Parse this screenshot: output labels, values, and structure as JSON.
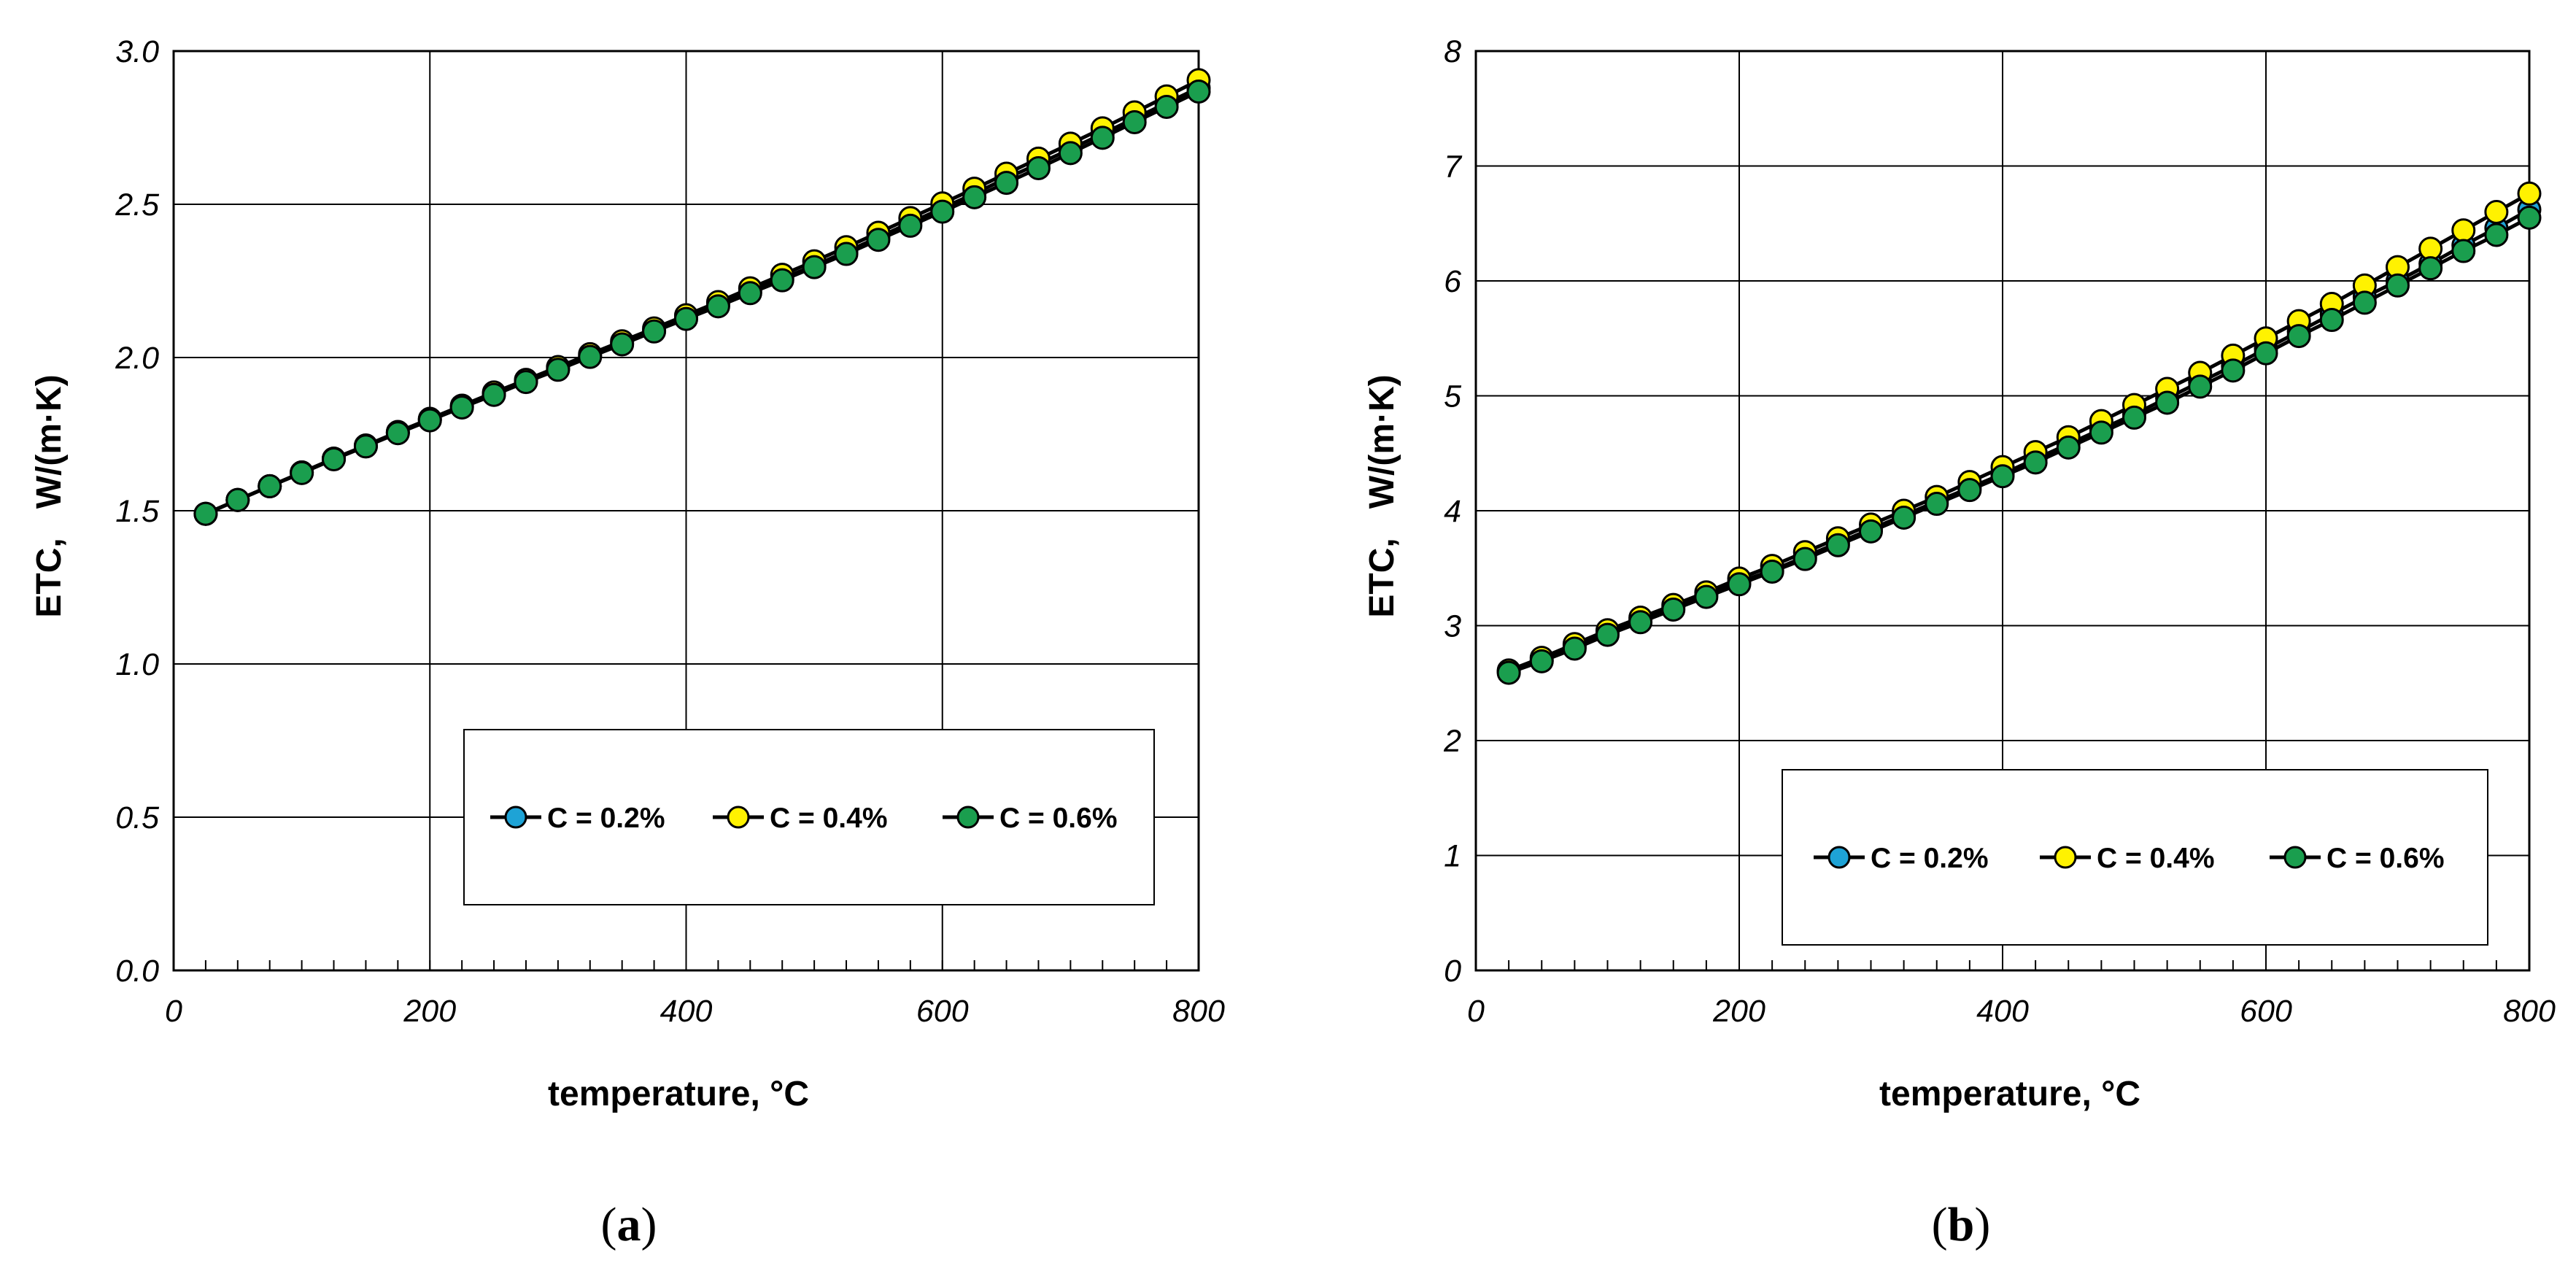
{
  "chart_data": [
    {
      "id": "a",
      "type": "line",
      "panel_label": "a",
      "xlabel": "temperature, °C",
      "ylabel": "ETC,   W/(m·K)",
      "xlim": [
        0,
        800
      ],
      "ylim": [
        0.0,
        3.0
      ],
      "x_ticks": [
        "0",
        "200",
        "400",
        "600",
        "800"
      ],
      "y_ticks": [
        "0.0",
        "0.5",
        "1.0",
        "1.5",
        "2.0",
        "2.5",
        "3.0"
      ],
      "grid": true,
      "legend_position": "bottom-right",
      "x": [
        25,
        50,
        75,
        100,
        125,
        150,
        175,
        200,
        225,
        250,
        275,
        300,
        325,
        350,
        375,
        400,
        425,
        450,
        475,
        500,
        525,
        550,
        575,
        600,
        625,
        650,
        675,
        700,
        725,
        750,
        775,
        800
      ],
      "series": [
        {
          "name": "C = 0.2%",
          "color": "#1ea3d6",
          "values": [
            1.49,
            1.535,
            1.58,
            1.625,
            1.67,
            1.71,
            1.755,
            1.797,
            1.84,
            1.882,
            1.922,
            1.963,
            2.005,
            2.047,
            2.088,
            2.13,
            2.172,
            2.215,
            2.258,
            2.3,
            2.345,
            2.392,
            2.44,
            2.487,
            2.535,
            2.585,
            2.632,
            2.68,
            2.73,
            2.78,
            2.83,
            2.88
          ]
        },
        {
          "name": "C = 0.4%",
          "color": "#fff200",
          "values": [
            1.49,
            1.535,
            1.58,
            1.625,
            1.67,
            1.713,
            1.757,
            1.8,
            1.843,
            1.886,
            1.927,
            1.969,
            2.011,
            2.053,
            2.095,
            2.138,
            2.181,
            2.226,
            2.27,
            2.314,
            2.36,
            2.407,
            2.455,
            2.503,
            2.551,
            2.6,
            2.649,
            2.698,
            2.748,
            2.8,
            2.852,
            2.905
          ]
        },
        {
          "name": "C = 0.6%",
          "color": "#1a9e4e",
          "values": [
            1.49,
            1.535,
            1.58,
            1.623,
            1.668,
            1.71,
            1.753,
            1.795,
            1.837,
            1.878,
            1.92,
            1.96,
            2.002,
            2.043,
            2.085,
            2.126,
            2.167,
            2.21,
            2.252,
            2.295,
            2.338,
            2.384,
            2.43,
            2.476,
            2.523,
            2.57,
            2.618,
            2.667,
            2.717,
            2.768,
            2.818,
            2.868
          ]
        }
      ]
    },
    {
      "id": "b",
      "type": "line",
      "panel_label": "b",
      "xlabel": "temperature, °C",
      "ylabel": "ETC,   W/(m·K)",
      "xlim": [
        0,
        800
      ],
      "ylim": [
        0,
        8
      ],
      "x_ticks": [
        "0",
        "200",
        "400",
        "600",
        "800"
      ],
      "y_ticks": [
        "0",
        "1",
        "2",
        "3",
        "4",
        "5",
        "6",
        "7",
        "8"
      ],
      "grid": true,
      "legend_position": "bottom-right",
      "x": [
        25,
        50,
        75,
        100,
        125,
        150,
        175,
        200,
        225,
        250,
        275,
        300,
        325,
        350,
        375,
        400,
        425,
        450,
        475,
        500,
        525,
        550,
        575,
        600,
        625,
        650,
        675,
        700,
        725,
        750,
        775,
        800
      ],
      "series": [
        {
          "name": "C = 0.2%",
          "color": "#1ea3d6",
          "values": [
            2.6,
            2.7,
            2.82,
            2.94,
            3.05,
            3.16,
            3.27,
            3.38,
            3.48,
            3.6,
            3.72,
            3.84,
            3.96,
            4.08,
            4.2,
            4.32,
            4.45,
            4.58,
            4.71,
            4.84,
            4.98,
            5.12,
            5.26,
            5.41,
            5.56,
            5.71,
            5.86,
            6.0,
            6.15,
            6.31,
            6.46,
            6.62
          ]
        },
        {
          "name": "C = 0.4%",
          "color": "#fff200",
          "values": [
            2.61,
            2.72,
            2.84,
            2.96,
            3.07,
            3.18,
            3.29,
            3.41,
            3.52,
            3.64,
            3.76,
            3.88,
            4.0,
            4.12,
            4.25,
            4.38,
            4.51,
            4.64,
            4.78,
            4.92,
            5.06,
            5.2,
            5.35,
            5.5,
            5.65,
            5.8,
            5.96,
            6.12,
            6.28,
            6.44,
            6.6,
            6.76
          ]
        },
        {
          "name": "C = 0.6%",
          "color": "#1a9e4e",
          "values": [
            2.59,
            2.69,
            2.8,
            2.92,
            3.03,
            3.14,
            3.25,
            3.36,
            3.47,
            3.58,
            3.7,
            3.82,
            3.94,
            4.06,
            4.18,
            4.3,
            4.42,
            4.55,
            4.68,
            4.81,
            4.94,
            5.08,
            5.22,
            5.37,
            5.52,
            5.66,
            5.81,
            5.96,
            6.11,
            6.26,
            6.4,
            6.55
          ]
        }
      ]
    }
  ]
}
